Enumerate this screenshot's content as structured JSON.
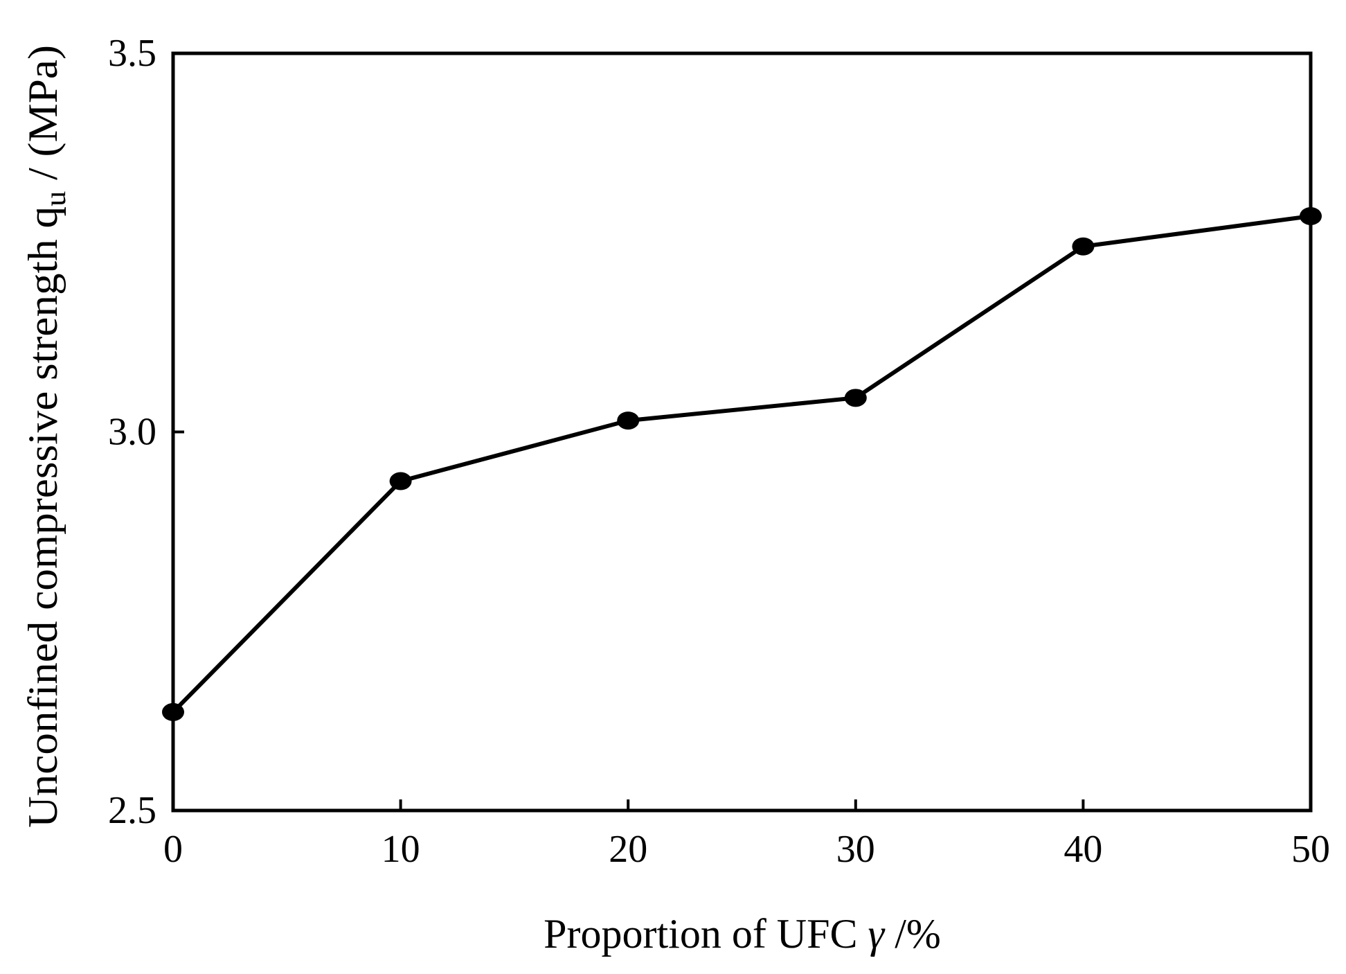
{
  "chart_data": {
    "type": "line",
    "xlabel": {
      "main": "Proportion of UFC ",
      "symbol": "γ",
      "unit": " /%"
    },
    "ylabel": {
      "main": "Unconfined compressive strength q",
      "subscript": "u",
      "unit": " / (MPa)"
    },
    "xlim": [
      0,
      50
    ],
    "ylim": [
      2.5,
      3.5
    ],
    "xticks": [
      0,
      10,
      20,
      30,
      40,
      50
    ],
    "xtick_labels": [
      "0",
      "10",
      "20",
      "30",
      "40",
      "50"
    ],
    "yticks": [
      2.5,
      3.0,
      3.5
    ],
    "ytick_labels": [
      "2.5",
      "3.0",
      "3.5"
    ],
    "grid": false,
    "series": [
      {
        "x": [
          0,
          10,
          20,
          30,
          40,
          50
        ],
        "values": [
          2.63,
          2.935,
          3.015,
          3.045,
          3.245,
          3.285
        ],
        "color": "#000000",
        "marker": "filled-circle"
      }
    ]
  }
}
